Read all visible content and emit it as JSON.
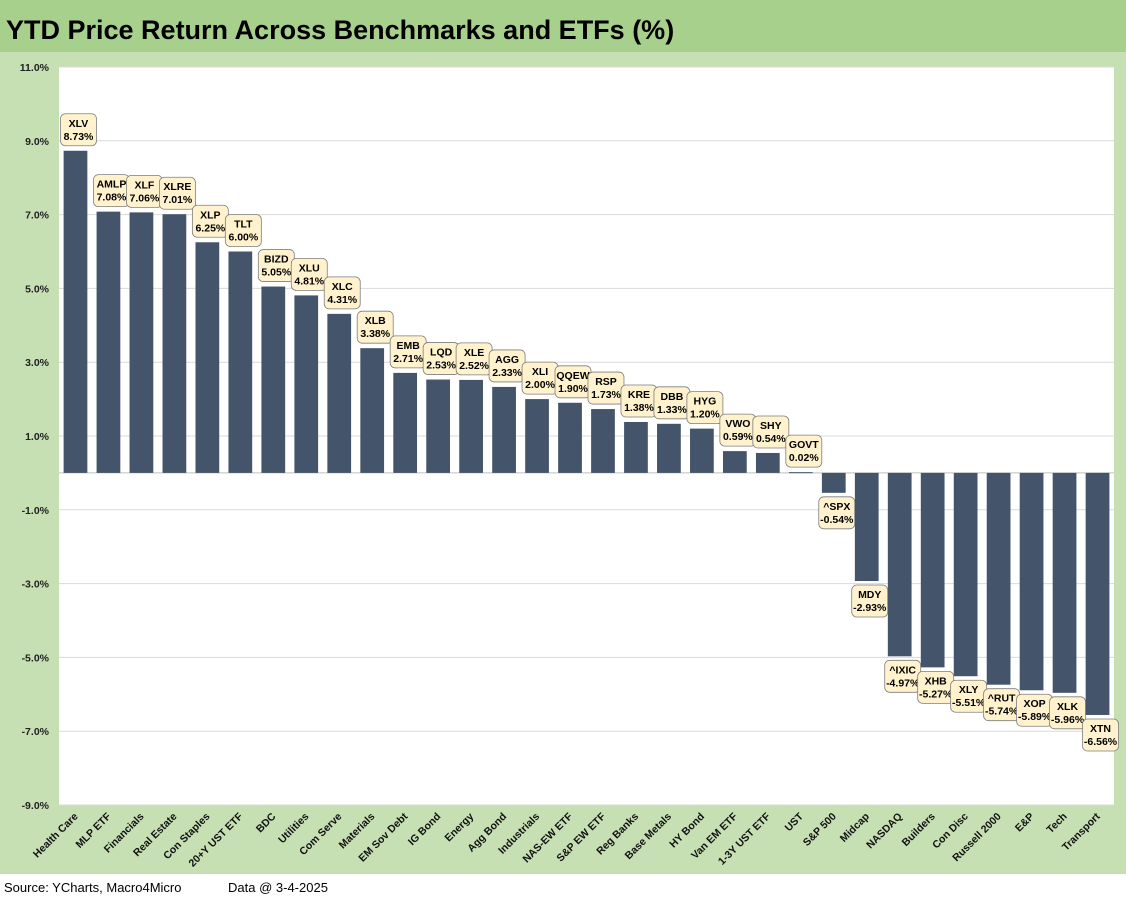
{
  "title": "YTD Price Return Across Benchmarks and ETFs (%)",
  "footer": {
    "source": "Source: YCharts, Macro4Micro",
    "data_date": "Data @ 3-4-2025"
  },
  "colors": {
    "bar": "#44546a",
    "label_bg": "#fff2cc",
    "plot_bg": "#ffffff",
    "frame": "#c6e0b4",
    "title_bg": "#a8d08d",
    "grid": "#d9d9d9"
  },
  "chart_data": {
    "type": "bar",
    "title": "YTD Price Return Across Benchmarks and ETFs (%)",
    "xlabel": "",
    "ylabel": "",
    "ylim": [
      -9.0,
      11.0
    ],
    "yticks": [
      11.0,
      9.0,
      7.0,
      5.0,
      3.0,
      1.0,
      -1.0,
      -3.0,
      -5.0,
      -7.0,
      -9.0
    ],
    "ytick_labels": [
      "11.0%",
      "9.0%",
      "7.0%",
      "5.0%",
      "3.0%",
      "1.0%",
      "-1.0%",
      "-3.0%",
      "-5.0%",
      "-7.0%",
      "-9.0%"
    ],
    "grid": true,
    "categories": [
      "Health Care",
      "MLP ETF",
      "Financials",
      "Real Estate",
      "Con Staples",
      "20+Y UST ETF",
      "BDC",
      "Utilities",
      "Com Serve",
      "Materials",
      "EM Sov Debt",
      "IG Bond",
      "Energy",
      "Agg Bond",
      "Industrials",
      "NAS-EW ETF",
      "S&P EW ETF",
      "Reg Banks",
      "Base Metals",
      "HY Bond",
      "Van EM ETF",
      "1-3Y UST ETF",
      "UST",
      "S&P 500",
      "Midcap",
      "NASDAQ",
      "Builders",
      "Con Disc",
      "Russell 2000",
      "E&P",
      "Tech",
      "Transport"
    ],
    "tickers": [
      "XLV",
      "AMLP",
      "XLF",
      "XLRE",
      "XLP",
      "TLT",
      "BIZD",
      "XLU",
      "XLC",
      "XLB",
      "EMB",
      "LQD",
      "XLE",
      "AGG",
      "XLI",
      "QQEW",
      "RSP",
      "KRE",
      "DBB",
      "HYG",
      "VWO",
      "SHY",
      "GOVT",
      "^SPX",
      "MDY",
      "^IXIC",
      "XHB",
      "XLY",
      "^RUT",
      "XOP",
      "XLK",
      "XTN"
    ],
    "values": [
      8.73,
      7.08,
      7.06,
      7.01,
      6.25,
      6.0,
      5.05,
      4.81,
      4.31,
      3.38,
      2.71,
      2.53,
      2.52,
      2.33,
      2.0,
      1.9,
      1.73,
      1.38,
      1.33,
      1.2,
      0.59,
      0.54,
      0.02,
      -0.54,
      -2.93,
      -4.97,
      -5.27,
      -5.51,
      -5.74,
      -5.89,
      -5.96,
      -6.56
    ],
    "value_labels": [
      "8.73%",
      "7.08%",
      "7.06%",
      "7.01%",
      "6.25%",
      "6.00%",
      "5.05%",
      "4.81%",
      "4.31%",
      "3.38%",
      "2.71%",
      "2.53%",
      "2.52%",
      "2.33%",
      "2.00%",
      "1.90%",
      "1.73%",
      "1.38%",
      "1.33%",
      "1.20%",
      "0.59%",
      "0.54%",
      "0.02%",
      "-0.54%",
      "-2.93%",
      "-4.97%",
      "-5.27%",
      "-5.51%",
      "-5.74%",
      "-5.89%",
      "-5.96%",
      "-6.56%"
    ]
  }
}
